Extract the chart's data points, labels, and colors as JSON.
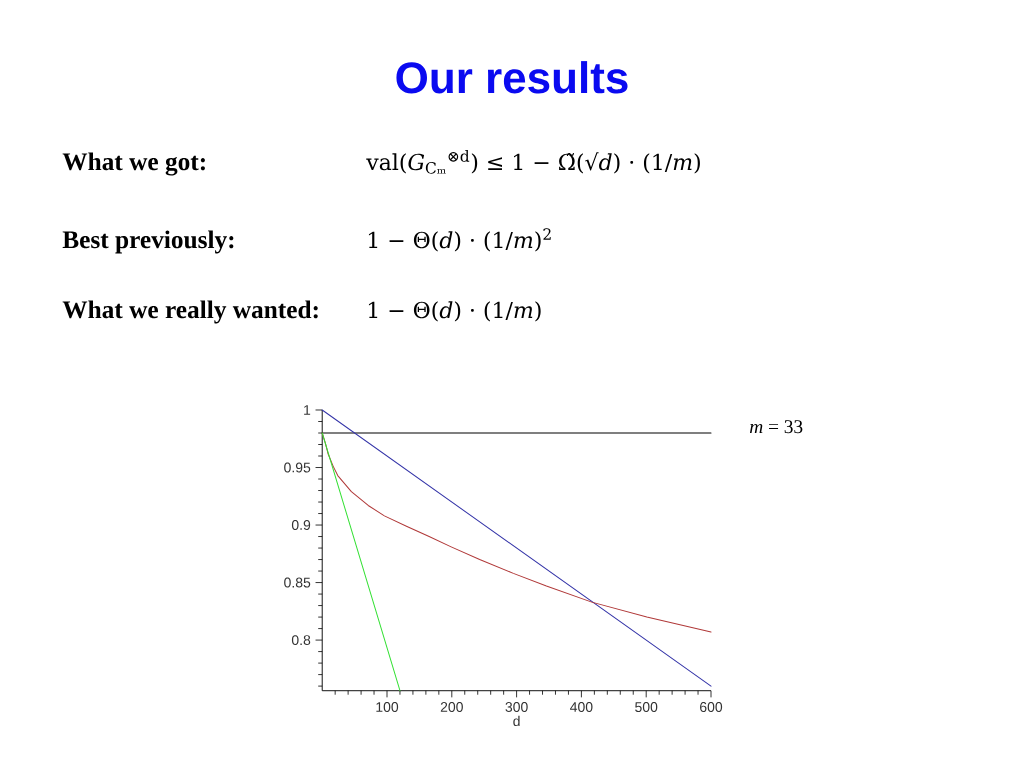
{
  "chart_data": {
    "type": "line",
    "title": "Our results",
    "xlabel": "d",
    "xlim": [
      0,
      600
    ],
    "ylim": [
      0.756,
      1
    ],
    "xticks": [
      100,
      200,
      300,
      400,
      500,
      600
    ],
    "yticks": [
      0.8,
      0.85,
      0.9,
      0.95,
      1
    ],
    "series": [
      {
        "color": "#000000",
        "x": [
          0,
          600
        ],
        "values": [
          0.98,
          0.98
        ]
      },
      {
        "color": "#3434a8",
        "x": [
          0,
          600
        ],
        "values": [
          1,
          0.76
        ]
      },
      {
        "color": "#b03838",
        "x": [
          0,
          5,
          9,
          17,
          24,
          45,
          71,
          96,
          130,
          165,
          199,
          243,
          295,
          346,
          416,
          501,
          600
        ],
        "values": [
          0.98,
          0.971,
          0.962,
          0.951,
          0.943,
          0.929,
          0.917,
          0.908,
          0.899,
          0.89,
          0.881,
          0.87,
          0.858,
          0.847,
          0.833,
          0.82,
          0.807
        ]
      },
      {
        "color": "#33e033",
        "x": [
          0,
          120
        ],
        "values": [
          0.98,
          0.756
        ]
      }
    ],
    "annotations": [
      "What we got:",
      "val(*G*$_{Cₘ}$$^{⊗d}$) ≤ 1 − Ω̃(√*d*) · (1/*m*)",
      "Best previously:",
      "1 − Θ(*d*) · (1/*m*)$^{2}$",
      "What we really wanted:",
      "1 − Θ(*d*) · (1/*m*)",
      "*m* = 33"
    ]
  }
}
